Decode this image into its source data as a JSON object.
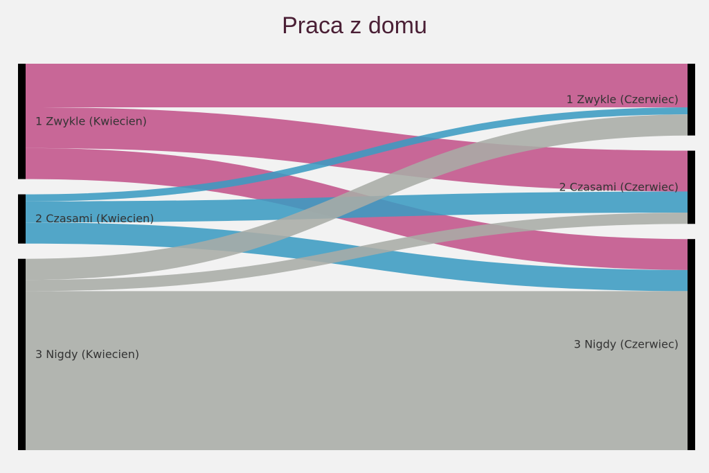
{
  "title": "Praca z domu",
  "chart_data": {
    "type": "sankey",
    "title": "Praca z domu",
    "nodes": [
      {
        "id": "L1",
        "label": "1 Zwykle (Kwiecien)",
        "side": "left"
      },
      {
        "id": "L2",
        "label": "2 Czasami (Kwiecien)",
        "side": "left"
      },
      {
        "id": "L3",
        "label": "3 Nigdy (Kwiecien)",
        "side": "left"
      },
      {
        "id": "R1",
        "label": "1 Zwykle (Czerwiec)",
        "side": "right"
      },
      {
        "id": "R2",
        "label": "2 Czasami (Czerwiec)",
        "side": "right"
      },
      {
        "id": "R3",
        "label": "3 Nigdy (Czerwiec)",
        "side": "right"
      }
    ],
    "links": [
      {
        "source": "L1",
        "target": "R1",
        "value": 62
      },
      {
        "source": "L1",
        "target": "R2",
        "value": 58
      },
      {
        "source": "L1",
        "target": "R3",
        "value": 44
      },
      {
        "source": "L2",
        "target": "R1",
        "value": 10
      },
      {
        "source": "L2",
        "target": "R2",
        "value": 30
      },
      {
        "source": "L2",
        "target": "R3",
        "value": 30
      },
      {
        "source": "L3",
        "target": "R1",
        "value": 30
      },
      {
        "source": "L3",
        "target": "R2",
        "value": 16
      },
      {
        "source": "L3",
        "target": "R3",
        "value": 226
      }
    ],
    "colors": {
      "L1": "#c2538a",
      "L2": "#3b9bc2",
      "L3": "#a9aca6",
      "node_bar": "#000000"
    }
  }
}
